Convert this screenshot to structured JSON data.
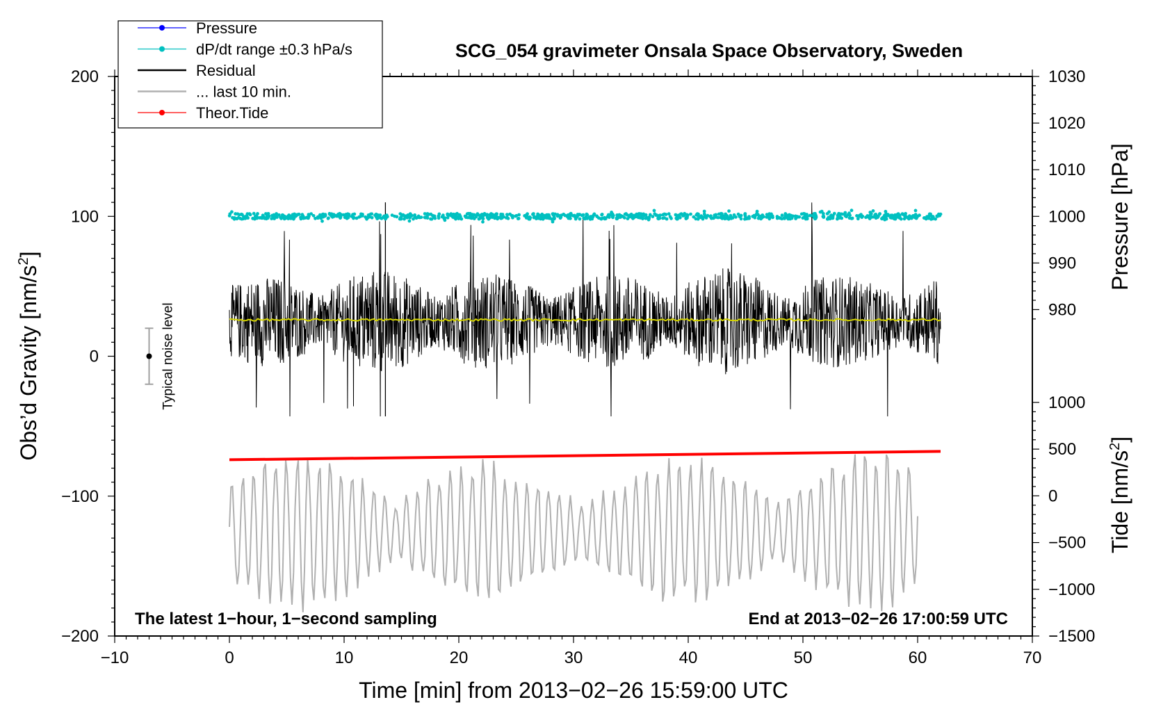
{
  "chart_data": {
    "type": "line",
    "title": "SCG_054 gravimeter Onsala Space Observatory, Sweden",
    "xlabel": "Time [min] from 2013−02−26 15:59:00 UTC",
    "ylabel_main": "Obs’d Gravity [nm/s",
    "ylabel_main_sup": "2",
    "ylabel_main_end": "]",
    "ylabel_pressure": "Pressure [hPa]",
    "ylabel_tide": "Tide [nm/s",
    "ylabel_tide_sup": "2",
    "ylabel_tide_end": "]",
    "xlim": [
      -10,
      70
    ],
    "ylim": [
      -200,
      200
    ],
    "x_ticks": [
      -10,
      0,
      10,
      20,
      30,
      40,
      50,
      60,
      70
    ],
    "x_tick_labels": [
      "−10",
      "0",
      "10",
      "20",
      "30",
      "40",
      "50",
      "60",
      "70"
    ],
    "y_ticks": [
      200,
      100,
      0,
      -100,
      -200
    ],
    "y_tick_labels": [
      "200",
      "100",
      "0",
      "−100",
      "−200"
    ],
    "pressure_ticks": [
      1030,
      1020,
      1010,
      1000,
      990,
      980
    ],
    "pressure_tick_labels": [
      "1030",
      "1020",
      "1010",
      "1000",
      "990",
      "980"
    ],
    "pressure_range": [
      1030,
      1000
    ],
    "pressure_y_range": [
      200,
      100
    ],
    "tide_ticks": [
      1000,
      500,
      0,
      -500,
      -1000,
      -1500
    ],
    "tide_tick_labels": [
      "1000",
      "500",
      "0",
      "−500",
      "−1000",
      "−1500"
    ],
    "tide_range": [
      1000,
      -1500
    ],
    "tide_y_range": [
      -33,
      -200
    ],
    "legend": [
      {
        "label": "Pressure",
        "color": "#0000ff",
        "style": "line-dot"
      },
      {
        "label": "dP/dt range ±0.3 hPa/s",
        "color": "#00c0c0",
        "style": "line-dot"
      },
      {
        "label": "Residual",
        "color": "#000000",
        "style": "line"
      },
      {
        "label": "... last 10 min.",
        "color": "#b0b0b0",
        "style": "line"
      },
      {
        "label": "Theor.Tide",
        "color": "#ff0000",
        "style": "line-dot"
      }
    ],
    "series": [
      {
        "name": "dP/dt range ±0.3 hPa/s",
        "color": "#00c0c0",
        "x_range": [
          0,
          62
        ],
        "y_center": 100,
        "spread": 2
      },
      {
        "name": "Residual",
        "color": "#000000",
        "x_range": [
          0,
          62
        ],
        "y_center": 25,
        "y_min": -43,
        "y_max": 110
      },
      {
        "name": "Residual mean",
        "color": "#d4d400",
        "x_range": [
          0,
          62
        ],
        "y": 26
      },
      {
        "name": "Theor.Tide",
        "color": "#ff0000",
        "x": [
          0,
          62
        ],
        "y": [
          -74,
          -68
        ]
      },
      {
        "name": "... last 10 min.",
        "color": "#b0b0b0",
        "x_range": [
          0,
          60
        ],
        "y_center": -125,
        "y_min": -183,
        "y_max": -60
      }
    ],
    "noise_bar": {
      "label": "Typical noise level",
      "x": -7,
      "y": 0,
      "y_low": -20,
      "y_high": 20
    },
    "annotation_left": "The latest 1−hour, 1−second sampling",
    "annotation_right": "End at 2013−02−26 17:00:59 UTC"
  }
}
